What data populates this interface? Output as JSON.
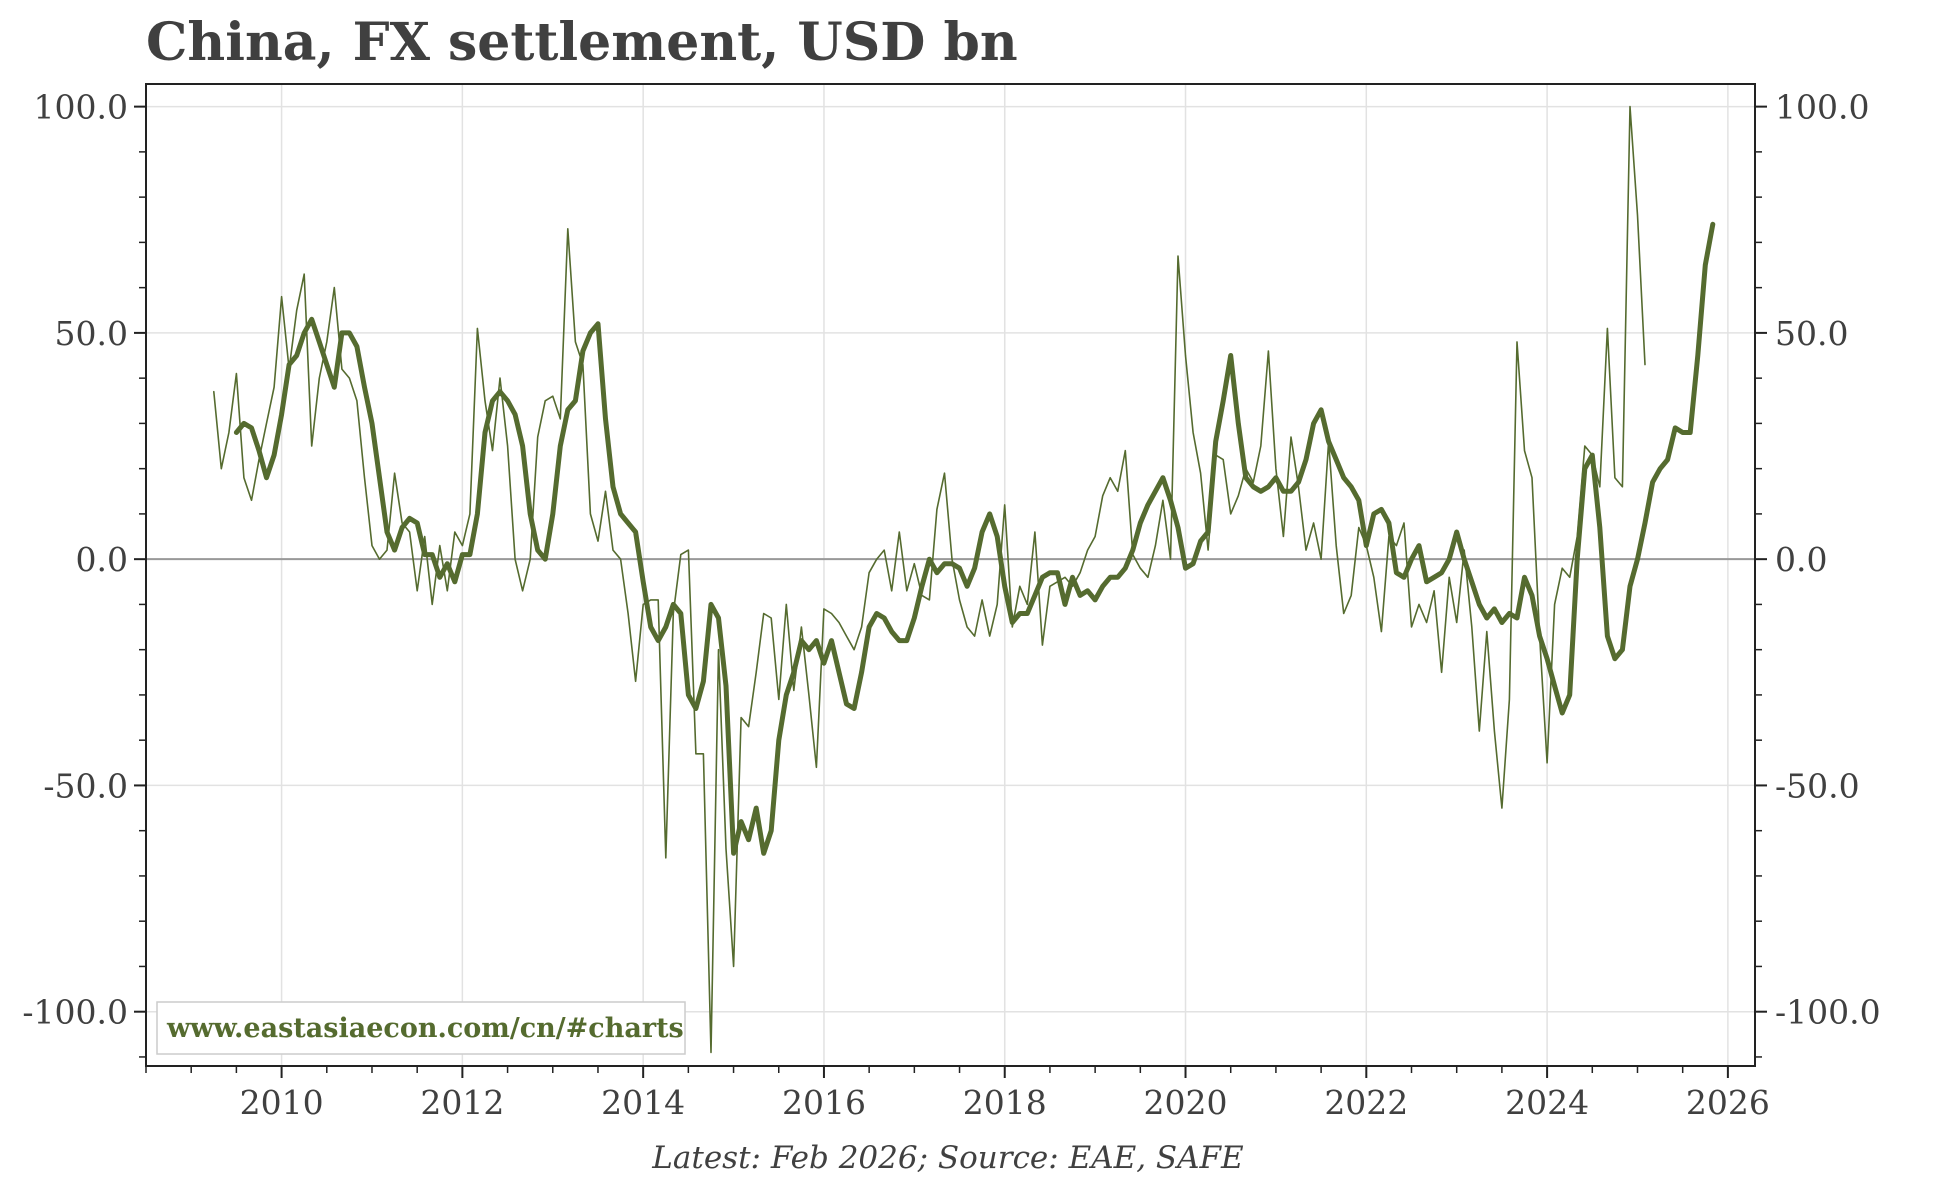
{
  "chart_data": {
    "type": "line",
    "title": "China, FX settlement, USD bn",
    "footer": "Latest: Feb 2026; Source: EAE, SAFE",
    "watermark": "www.eastasiaecon.com/cn/#charts",
    "xlabel": "",
    "ylabel": "",
    "xlim": [
      2008.5,
      2026.3
    ],
    "ylim": [
      -112,
      105
    ],
    "x_ticks": [
      2010,
      2012,
      2014,
      2016,
      2018,
      2020,
      2022,
      2024,
      2026
    ],
    "x_tick_labels": [
      "2010",
      "2012",
      "2014",
      "2016",
      "2018",
      "2020",
      "2022",
      "2024",
      "2026"
    ],
    "y_ticks": [
      100,
      50,
      0,
      -50,
      -100
    ],
    "y_tick_labels": [
      "100.0",
      "50.0",
      "0.0",
      "-50.0",
      "-100.0"
    ],
    "grid": true,
    "zero_line": true,
    "dual_y_axis": true,
    "colors": {
      "series": "#556b2f",
      "grid": "#e2e2e2",
      "axis": "#222222",
      "zero": "#999999",
      "text": "#404040"
    },
    "series": [
      {
        "style": "thin",
        "start": 2009.25,
        "step": 0.0833333,
        "values": [
          37,
          20,
          28,
          41,
          18,
          13,
          22,
          30,
          38,
          58,
          42,
          55,
          63,
          25,
          40,
          48,
          60,
          42,
          40,
          35,
          18,
          3,
          0,
          2,
          19,
          8,
          6,
          -7,
          5,
          -10,
          3,
          -7,
          6,
          3,
          10,
          51,
          35,
          24,
          40,
          25,
          0,
          -7,
          0,
          27,
          35,
          36,
          31,
          73,
          48,
          43,
          10,
          4,
          15,
          2,
          0,
          -12,
          -27,
          -10,
          -9,
          -9,
          -66,
          -12,
          1,
          2,
          -43,
          -43,
          -109,
          -20,
          -64,
          -90,
          -35,
          -37,
          -25,
          -12,
          -13,
          -31,
          -10,
          -29,
          -15,
          -30,
          -46,
          -11,
          -12,
          -14,
          -17,
          -20,
          -15,
          -3,
          0,
          2,
          -7,
          6,
          -7,
          -1,
          -8,
          -9,
          11,
          19,
          0,
          -9,
          -15,
          -17,
          -9,
          -17,
          -10,
          12,
          -15,
          -6,
          -10,
          6,
          -19,
          -6,
          -5,
          -4,
          -6,
          -3,
          2,
          5,
          14,
          18,
          15,
          24,
          1,
          -2,
          -4,
          3,
          13,
          0,
          67,
          45,
          28,
          19,
          2,
          23,
          22,
          10,
          14,
          20,
          17,
          25,
          46,
          20,
          5,
          27,
          16,
          2,
          8,
          0,
          26,
          3,
          -12,
          -8,
          7,
          3,
          -4,
          -16,
          5,
          3,
          8,
          -15,
          -10,
          -14,
          -7,
          -25,
          -4,
          -14,
          2,
          -15,
          -38,
          -16,
          -38,
          -55,
          -31,
          48,
          24,
          18,
          -17,
          -45,
          -10,
          -2,
          -4,
          5,
          25,
          23,
          16,
          51,
          18,
          16,
          100,
          76,
          43
        ]
      },
      {
        "style": "thick",
        "start": 2009.5,
        "step": 0.0833333,
        "values": [
          28,
          30,
          29,
          24,
          18,
          23,
          32,
          43,
          45,
          50,
          53,
          48,
          43,
          38,
          50,
          50,
          47,
          38,
          30,
          18,
          6,
          2,
          7,
          9,
          8,
          1,
          1,
          -4,
          -1,
          -5,
          1,
          1,
          10,
          28,
          35,
          37,
          35,
          32,
          25,
          10,
          2,
          0,
          10,
          25,
          33,
          35,
          46,
          50,
          52,
          31,
          16,
          10,
          8,
          6,
          -5,
          -15,
          -18,
          -15,
          -10,
          -12,
          -30,
          -33,
          -27,
          -10,
          -13,
          -28,
          -65,
          -58,
          -62,
          -55,
          -65,
          -60,
          -40,
          -30,
          -25,
          -18,
          -20,
          -18,
          -23,
          -18,
          -25,
          -32,
          -33,
          -25,
          -15,
          -12,
          -13,
          -16,
          -18,
          -18,
          -13,
          -6,
          0,
          -3,
          -1,
          -1,
          -2,
          -6,
          -2,
          6,
          10,
          5,
          -6,
          -14,
          -12,
          -12,
          -8,
          -4,
          -3,
          -3,
          -10,
          -4,
          -8,
          -7,
          -9,
          -6,
          -4,
          -4,
          -2,
          2,
          8,
          12,
          15,
          18,
          13,
          7,
          -2,
          -1,
          4,
          6,
          26,
          35,
          45,
          30,
          18,
          16,
          15,
          16,
          18,
          15,
          15,
          17,
          22,
          30,
          33,
          26,
          22,
          18,
          16,
          13,
          3,
          10,
          11,
          8,
          -3,
          -4,
          0,
          3,
          -5,
          -4,
          -3,
          0,
          6,
          0,
          -5,
          -10,
          -13,
          -11,
          -14,
          -12,
          -13,
          -4,
          -8,
          -17,
          -22,
          -28,
          -34,
          -30,
          0,
          20,
          23,
          7,
          -17,
          -22,
          -20,
          -6,
          0,
          8,
          17,
          20,
          22,
          29,
          28,
          28,
          45,
          65,
          74
        ]
      }
    ]
  }
}
